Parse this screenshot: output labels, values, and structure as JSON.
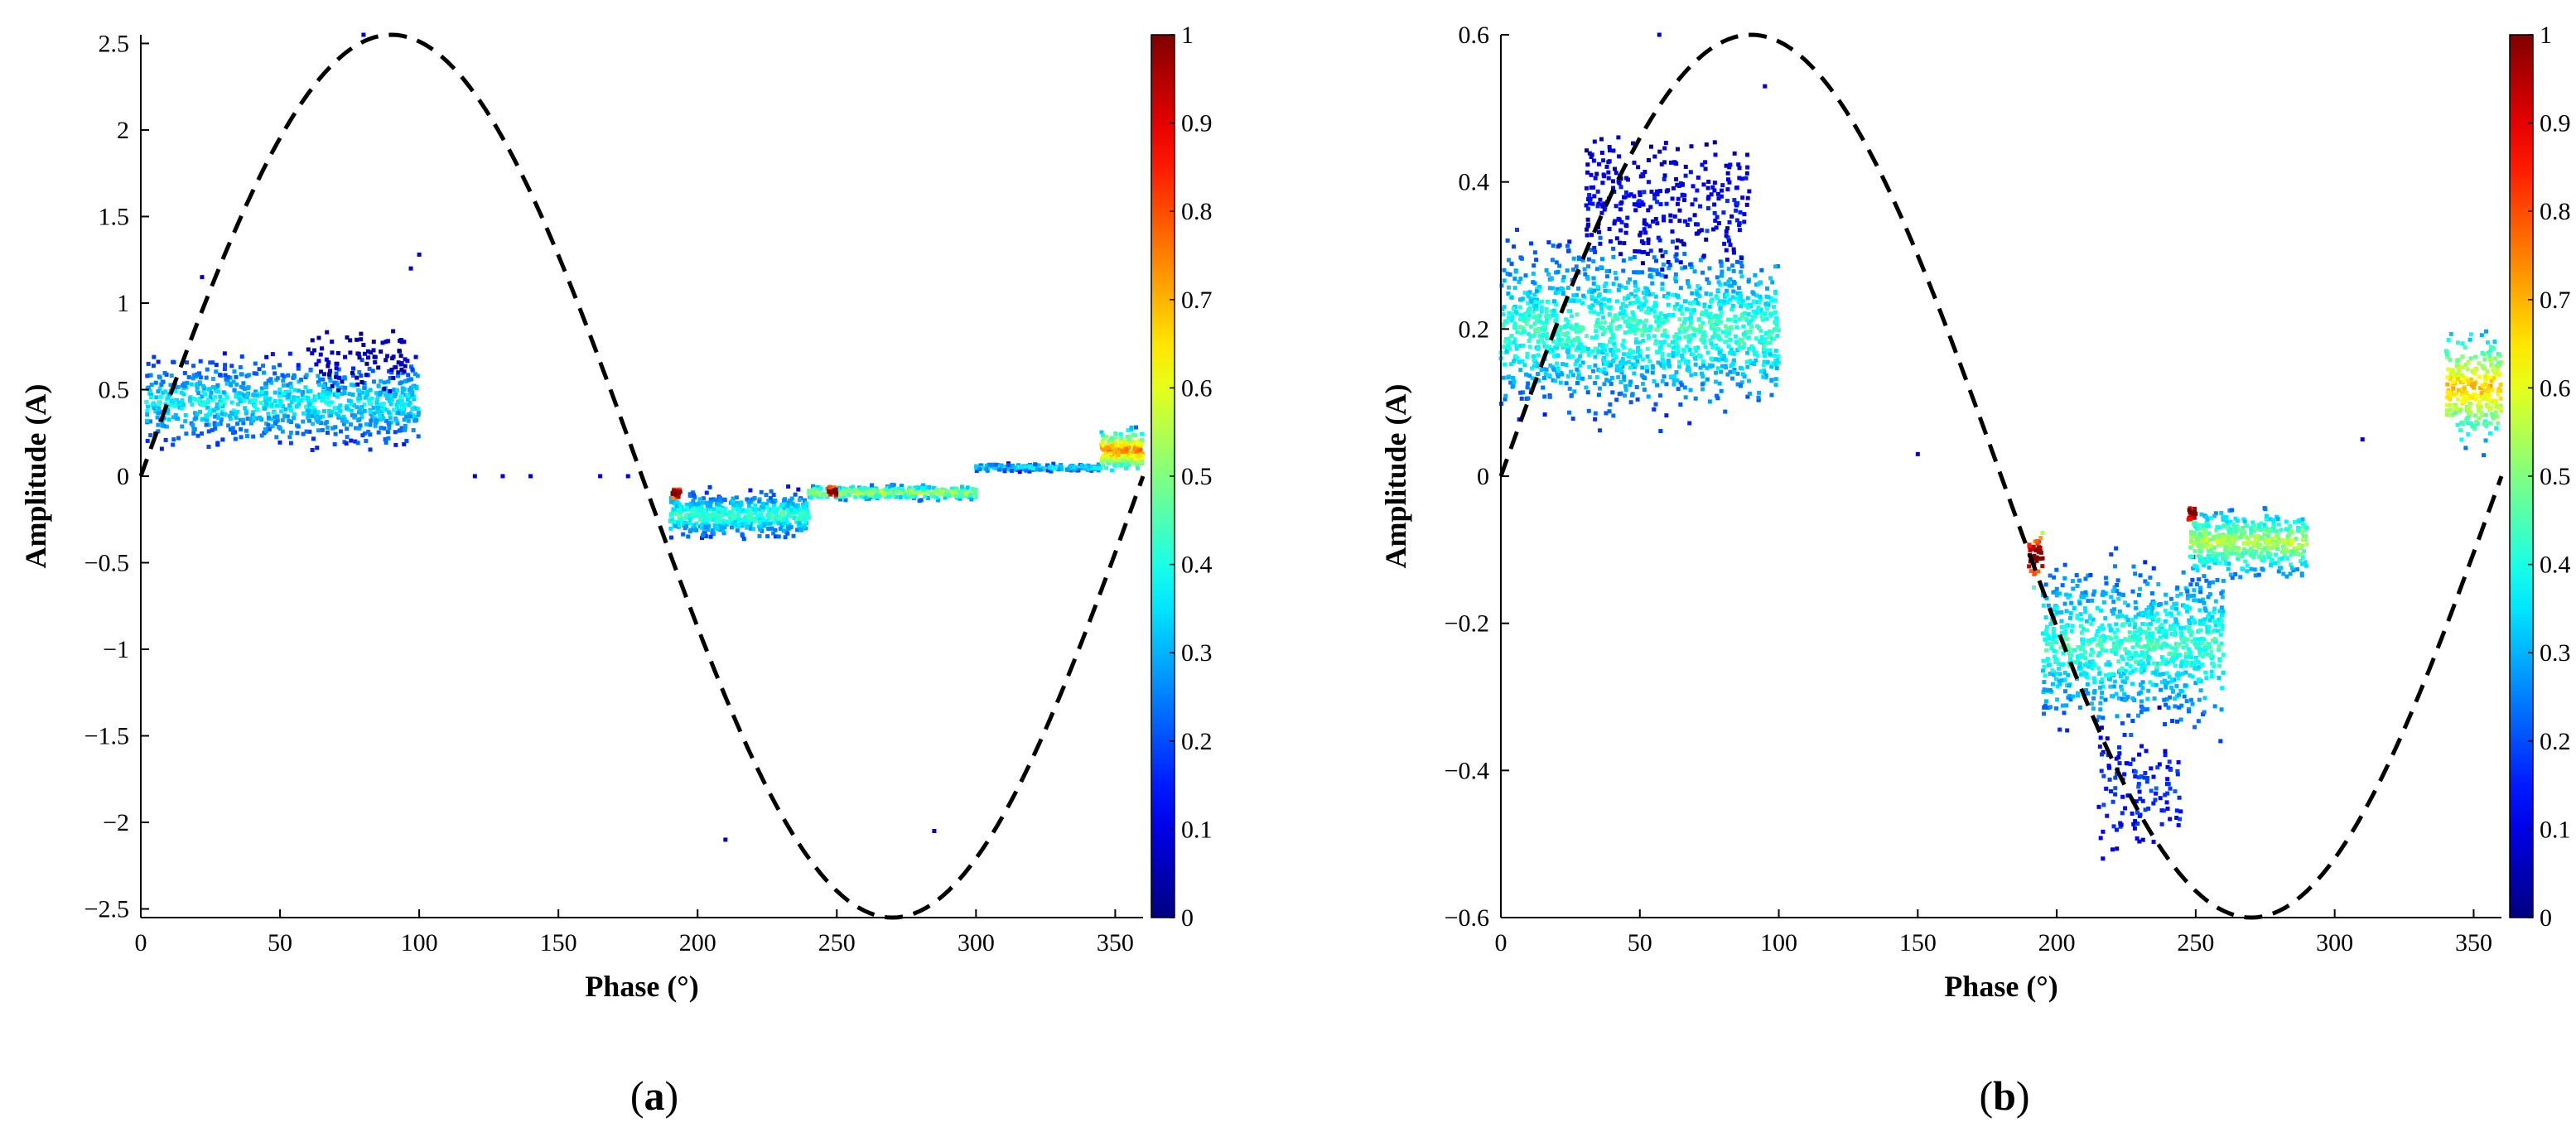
{
  "chart_data": [
    {
      "type": "scatter",
      "panel_label": "a",
      "xlabel": "Phase (°)",
      "ylabel": "Amplitude (A)",
      "xlim": [
        0,
        360
      ],
      "ylim": [
        -2.55,
        2.55
      ],
      "xticks": [
        0,
        50,
        100,
        150,
        200,
        250,
        300,
        350
      ],
      "yticks": [
        2.5,
        2,
        1.5,
        1,
        0.5,
        0,
        -0.5,
        -1,
        -1.5,
        -2,
        -2.5
      ],
      "ytick_labels": [
        "2.5",
        "2",
        "1.5",
        "1",
        "0.5",
        "0",
        "−0.5",
        "−1",
        "−1.5",
        "−2",
        "−2.5"
      ],
      "colorbar": {
        "min": 0,
        "max": 1,
        "ticks": [
          "0",
          "0.1",
          "0.2",
          "0.3",
          "0.4",
          "0.5",
          "0.6",
          "0.7",
          "0.8",
          "0.9",
          "1"
        ],
        "colormap": "jet"
      },
      "reference_curve": {
        "style": "dashed",
        "color": "#000000",
        "function": "2.55*sin(phase)"
      },
      "clusters": [
        {
          "phase": [
            2,
            100
          ],
          "amplitude": [
            0.1,
            0.75
          ],
          "density": 0.3,
          "points": 900
        },
        {
          "phase": [
            60,
            95
          ],
          "amplitude": [
            0.4,
            0.95
          ],
          "density": 0.05,
          "points": 80
        },
        {
          "phase": [
            190,
            240
          ],
          "amplitude": [
            -0.4,
            -0.05
          ],
          "density": 0.35,
          "points": 550
        },
        {
          "phase": [
            240,
            300
          ],
          "amplitude": [
            -0.15,
            -0.04
          ],
          "density": 0.45,
          "points": 350
        },
        {
          "phase": [
            300,
            345
          ],
          "amplitude": [
            0.02,
            0.08
          ],
          "density": 0.3,
          "points": 180
        },
        {
          "phase": [
            345,
            360
          ],
          "amplitude": [
            0.0,
            0.3
          ],
          "density": 0.6,
          "points": 220
        },
        {
          "phase": [
            191,
            194
          ],
          "amplitude": [
            -0.15,
            -0.05
          ],
          "density": 0.95,
          "points": 30
        },
        {
          "phase": [
            247,
            250
          ],
          "amplitude": [
            -0.14,
            -0.04
          ],
          "density": 0.95,
          "points": 20
        }
      ],
      "outliers": [
        [
          80,
          2.55
        ],
        [
          97,
          1.2
        ],
        [
          100,
          1.28
        ],
        [
          120,
          0.0
        ],
        [
          130,
          0.0
        ],
        [
          140,
          0.0
        ],
        [
          165,
          0.0
        ],
        [
          175,
          0.0
        ],
        [
          210,
          -2.1
        ],
        [
          285,
          -2.05
        ],
        [
          22,
          1.15
        ]
      ]
    },
    {
      "type": "scatter",
      "panel_label": "b",
      "xlabel": "Phase (°)",
      "ylabel": "Amplitude (A)",
      "xlim": [
        0,
        360
      ],
      "ylim": [
        -0.6,
        0.6
      ],
      "xticks": [
        0,
        50,
        100,
        150,
        200,
        250,
        300,
        350
      ],
      "yticks": [
        0.6,
        0.4,
        0.2,
        0,
        -0.2,
        -0.4,
        -0.6
      ],
      "ytick_labels": [
        "0.6",
        "0.4",
        "0.2",
        "0",
        "−0.2",
        "−0.4",
        "−0.6"
      ],
      "colorbar": {
        "min": 0,
        "max": 1,
        "ticks": [
          "0",
          "0.1",
          "0.2",
          "0.3",
          "0.4",
          "0.5",
          "0.6",
          "0.7",
          "0.8",
          "0.9",
          "1"
        ],
        "colormap": "jet"
      },
      "reference_curve": {
        "style": "dashed",
        "color": "#000000",
        "function": "0.6*sin(phase)"
      },
      "clusters": [
        {
          "phase": [
            0,
            100
          ],
          "amplitude": [
            0.05,
            0.35
          ],
          "density": 0.35,
          "points": 1400
        },
        {
          "phase": [
            30,
            90
          ],
          "amplitude": [
            0.25,
            0.5
          ],
          "density": 0.1,
          "points": 300
        },
        {
          "phase": [
            195,
            260
          ],
          "amplitude": [
            -0.38,
            -0.08
          ],
          "density": 0.35,
          "points": 900
        },
        {
          "phase": [
            215,
            245
          ],
          "amplitude": [
            -0.55,
            -0.3
          ],
          "density": 0.15,
          "points": 120
        },
        {
          "phase": [
            248,
            290
          ],
          "amplitude": [
            -0.15,
            -0.03
          ],
          "density": 0.45,
          "points": 450
        },
        {
          "phase": [
            340,
            360
          ],
          "amplitude": [
            0.02,
            0.22
          ],
          "density": 0.55,
          "points": 260
        },
        {
          "phase": [
            190,
            195
          ],
          "amplitude": [
            -0.16,
            -0.06
          ],
          "density": 0.9,
          "points": 40
        },
        {
          "phase": [
            247,
            250
          ],
          "amplitude": [
            -0.07,
            -0.03
          ],
          "density": 0.95,
          "points": 15
        }
      ],
      "outliers": [
        [
          57,
          0.6
        ],
        [
          95,
          0.53
        ],
        [
          150,
          0.03
        ],
        [
          310,
          0.05
        ]
      ]
    }
  ]
}
